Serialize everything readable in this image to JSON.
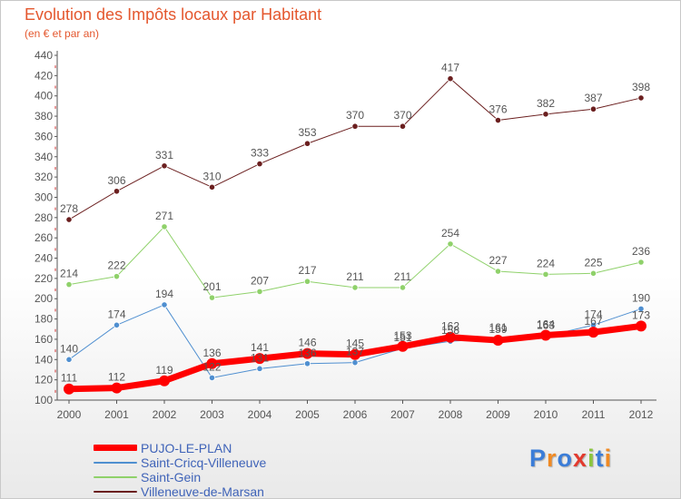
{
  "header": {
    "title": "Evolution des Impôts locaux par Habitant",
    "subtitle": "(en € et par an)"
  },
  "logo": {
    "text": "Proxiti",
    "letter_colors": [
      "#3b7dd8",
      "#f08a24",
      "#3b7dd8",
      "#e23a2e",
      "#8cc63f",
      "#3b7dd8",
      "#f08a24"
    ]
  },
  "colors": {
    "axis": "#555555",
    "grid_tick": "#d03030",
    "label": "#555555",
    "title": "#e4572e",
    "legend_text": "#3f63b8"
  },
  "chart_data": {
    "type": "line",
    "title": "Evolution des Impôts locaux par Habitant",
    "subtitle": "(en € et par an)",
    "xlabel": "",
    "ylabel": "",
    "ylim": [
      100,
      440
    ],
    "yticks": [
      100,
      120,
      140,
      160,
      180,
      200,
      220,
      240,
      260,
      280,
      300,
      320,
      340,
      360,
      380,
      400,
      420,
      440
    ],
    "categories": [
      "2000",
      "2001",
      "2002",
      "2003",
      "2004",
      "2005",
      "2006",
      "2007",
      "2008",
      "2009",
      "2010",
      "2011",
      "2012"
    ],
    "legend_position": "bottom-left",
    "series": [
      {
        "name": "PUJO-LE-PLAN",
        "color": "#ff0000",
        "width": 7,
        "values": [
          111,
          112,
          119,
          136,
          141,
          146,
          145,
          153,
          162,
          159,
          164,
          167,
          173
        ]
      },
      {
        "name": "Saint-Cricq-Villeneuve",
        "color": "#4f8fd0",
        "width": 1,
        "values": [
          140,
          174,
          194,
          122,
          131,
          136,
          137,
          151,
          158,
          161,
          163,
          174,
          190
        ]
      },
      {
        "name": "Saint-Gein",
        "color": "#8fd16a",
        "width": 1,
        "values": [
          214,
          222,
          271,
          201,
          207,
          217,
          211,
          211,
          254,
          227,
          224,
          225,
          236
        ]
      },
      {
        "name": "Villeneuve-de-Marsan",
        "color": "#6b1f1f",
        "width": 1,
        "values": [
          278,
          306,
          331,
          310,
          333,
          353,
          370,
          370,
          417,
          376,
          382,
          387,
          398
        ]
      }
    ]
  }
}
